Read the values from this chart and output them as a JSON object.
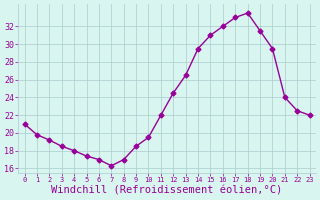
{
  "x": [
    0,
    1,
    2,
    3,
    4,
    5,
    6,
    7,
    8,
    9,
    10,
    11,
    12,
    13,
    14,
    15,
    16,
    17,
    18,
    19,
    20,
    21,
    22,
    23
  ],
  "y": [
    21.0,
    19.8,
    19.2,
    18.5,
    18.0,
    17.4,
    17.0,
    16.3,
    17.0,
    18.5,
    19.5,
    22.0,
    24.5,
    26.5,
    29.5,
    31.0,
    32.0,
    33.0,
    33.5,
    31.5,
    29.5,
    24.0,
    22.5,
    22.0
  ],
  "line_color": "#990099",
  "marker": "D",
  "marker_size": 2.5,
  "bg_color": "#d8f5f0",
  "grid_color": "#aacccc",
  "tick_color": "#990099",
  "xlabel": "Windchill (Refroidissement éolien,°C)",
  "xlabel_color": "#990099",
  "yticks": [
    16,
    18,
    20,
    22,
    24,
    26,
    28,
    30,
    32
  ],
  "ylim": [
    15.5,
    34.5
  ],
  "xlim": [
    -0.5,
    23.5
  ],
  "font_color": "#990099",
  "xlabel_fontsize": 7.5
}
